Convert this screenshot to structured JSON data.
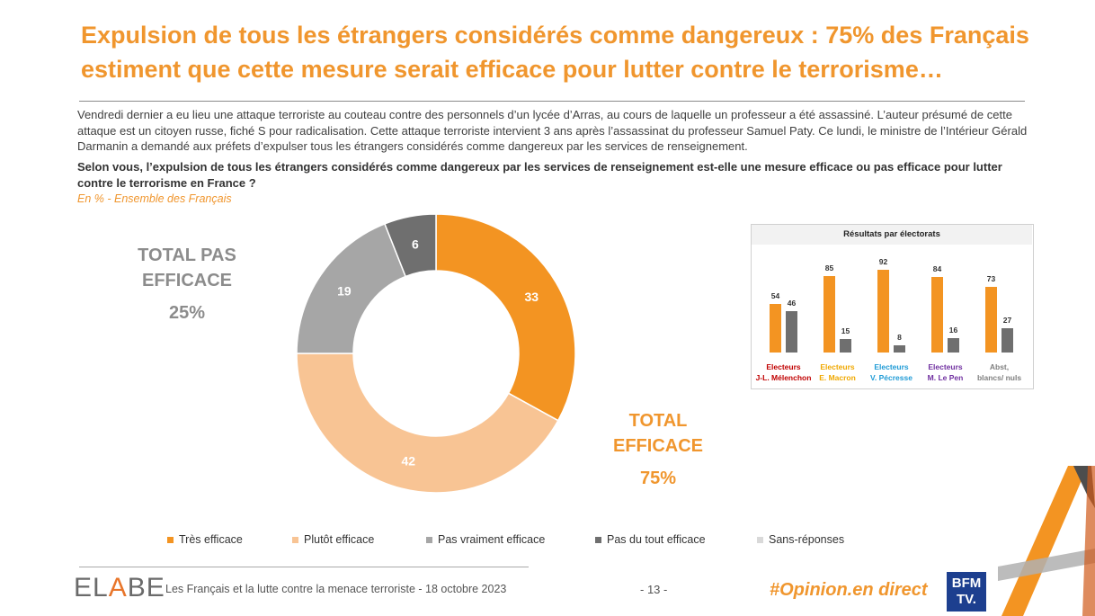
{
  "title": "Expulsion de tous les étrangers considérés comme dangereux : 75% des Français estiment que cette mesure serait efficace pour lutter contre le terrorisme…",
  "intro": "Vendredi dernier a eu lieu une attaque terroriste au couteau contre des personnels d’un lycée d’Arras, au cours de laquelle un professeur a été assassiné. L’auteur présumé de cette attaque est un citoyen russe, fiché S pour radicalisation. Cette attaque terroriste intervient 3 ans après l’assassinat du professeur Samuel Paty.  Ce lundi, le ministre de l’Intérieur Gérald Darmanin a demandé aux préfets d’expulser tous les étrangers considérés comme dangereux par les services de renseignement.",
  "question": "Selon vous, l’expulsion de tous les étrangers considérés comme dangereux par les services de renseignement est-elle une mesure efficace ou pas efficace pour lutter contre le terrorisme en France ?",
  "base": "En % - Ensemble des Français",
  "totals": {
    "pas_efficace_line1": "TOTAL PAS",
    "pas_efficace_line2": "EFFICACE",
    "pas_efficace_value": "25%",
    "efficace_line1": "TOTAL",
    "efficace_line2": "EFFICACE",
    "efficace_value": "75%"
  },
  "colors": {
    "tres_efficace": "#f39422",
    "plutot_efficace": "#f8c494",
    "pas_vraiment": "#a6a6a6",
    "pas_du_tout": "#6f6f6f",
    "sans_reponse": "#d9d9d9",
    "melenchon": "#c00000",
    "macron": "#f0a800",
    "pecresse": "#1f9bd6",
    "lepen": "#7030a0",
    "abst": "#7f7f7f"
  },
  "chart_data": [
    {
      "type": "pie",
      "variant": "donut",
      "title": "",
      "categories": [
        "Très efficace",
        "Plutôt efficace",
        "Pas vraiment efficace",
        "Pas du tout efficace",
        "Sans-réponses"
      ],
      "values": [
        33,
        42,
        19,
        6,
        0
      ],
      "labels": [
        "33",
        "42",
        "19",
        "6",
        ""
      ]
    },
    {
      "type": "bar",
      "title": "Résultats par électorats",
      "categories": [
        {
          "line1": "Electeurs",
          "line2": "J-L. Mélenchon",
          "color_key": "melenchon"
        },
        {
          "line1": "Electeurs",
          "line2": "E. Macron",
          "color_key": "macron"
        },
        {
          "line1": "Electeurs",
          "line2": "V. Pécresse",
          "color_key": "pecresse"
        },
        {
          "line1": "Electeurs",
          "line2": "M. Le Pen",
          "color_key": "lepen"
        },
        {
          "line1": "Abst,",
          "line2": "blancs/ nuls",
          "color_key": "abst"
        }
      ],
      "series": [
        {
          "name": "Total efficace",
          "values": [
            54,
            85,
            92,
            84,
            73
          ]
        },
        {
          "name": "Total pas efficace",
          "values": [
            46,
            15,
            8,
            16,
            27
          ]
        }
      ],
      "ylim": [
        0,
        100
      ]
    }
  ],
  "legend": [
    {
      "label": "Très efficace",
      "color_key": "tres_efficace"
    },
    {
      "label": "Plutôt efficace",
      "color_key": "plutot_efficace"
    },
    {
      "label": "Pas vraiment efficace",
      "color_key": "pas_vraiment"
    },
    {
      "label": "Pas du tout efficace",
      "color_key": "pas_du_tout"
    },
    {
      "label": "Sans-réponses",
      "color_key": "sans_reponse"
    }
  ],
  "footer": {
    "logo_prefix": "EL",
    "logo_mid": "A",
    "logo_suffix": "BE",
    "text": "Les Français et la lutte contre la menace terroriste - 18 octobre 2023",
    "page": "- 13 -",
    "hashtag": "#Opinion.en direct",
    "bfm_line1": "BFM",
    "bfm_line2": "TV."
  }
}
